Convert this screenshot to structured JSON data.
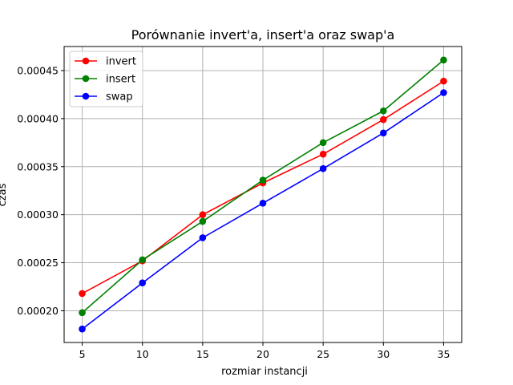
{
  "chart_data": {
    "type": "line",
    "title": "Porównanie invert'a, insert'a oraz swap'a",
    "xlabel": "rozmiar instancji",
    "ylabel": "czas",
    "x": [
      5,
      10,
      15,
      20,
      25,
      30,
      35
    ],
    "xlim": [
      3.5,
      36.5
    ],
    "ylim": [
      0.000167,
      0.000475
    ],
    "x_ticks": [
      5,
      10,
      15,
      20,
      25,
      30,
      35
    ],
    "x_tick_labels": [
      "5",
      "10",
      "15",
      "20",
      "25",
      "30",
      "35"
    ],
    "y_ticks": [
      0.0002,
      0.00025,
      0.0003,
      0.00035,
      0.0004,
      0.00045
    ],
    "y_tick_labels": [
      "0.00020",
      "0.00025",
      "0.00030",
      "0.00035",
      "0.00040",
      "0.00045"
    ],
    "grid": true,
    "legend_position": "top-left",
    "series": [
      {
        "name": "invert",
        "color": "#ff0000",
        "values": [
          0.000218,
          0.000252,
          0.0003,
          0.000333,
          0.000363,
          0.000399,
          0.000439
        ]
      },
      {
        "name": "insert",
        "color": "#008000",
        "values": [
          0.000198,
          0.000253,
          0.000293,
          0.000336,
          0.000375,
          0.000408,
          0.000461
        ]
      },
      {
        "name": "swap",
        "color": "#0000ff",
        "values": [
          0.000181,
          0.000229,
          0.000276,
          0.000312,
          0.000348,
          0.000385,
          0.000427
        ]
      }
    ]
  }
}
